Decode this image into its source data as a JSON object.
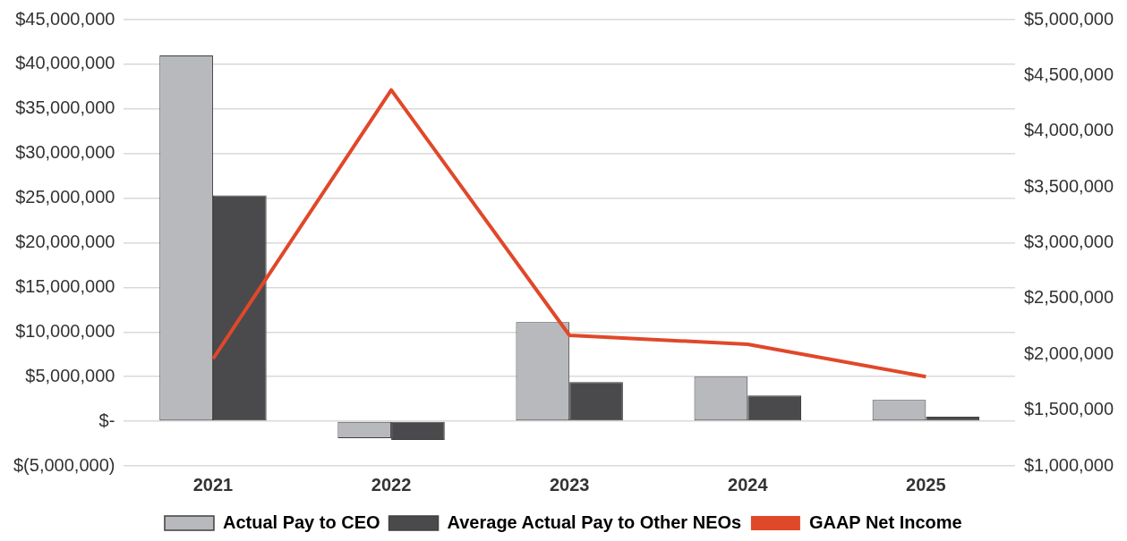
{
  "chart_data": {
    "type": "bar",
    "categories": [
      "2021",
      "2022",
      "2023",
      "2024",
      "2025"
    ],
    "series": [
      {
        "name": "Actual Pay to CEO",
        "color": "#b8b9bd",
        "values": [
          41000000,
          -1900000,
          11100000,
          5000000,
          2400000
        ]
      },
      {
        "name": "Average Actual Pay to Other NEOs",
        "color": "#4a4a4c",
        "values": [
          25300000,
          -2100000,
          4400000,
          2900000,
          500000
        ]
      },
      {
        "name": "GAAP Net Income",
        "type": "line",
        "axis": "y2",
        "color": "#e0482a",
        "marker": "none",
        "values": [
          1960000,
          4370000,
          2170000,
          2090000,
          1800000
        ]
      }
    ],
    "ylim": [
      -5000000,
      45000000
    ],
    "yticks": [
      {
        "value": -5000000,
        "label": "$(5,000,000)"
      },
      {
        "value": 0,
        "label": "$-"
      },
      {
        "value": 5000000,
        "label": "$5,000,000"
      },
      {
        "value": 10000000,
        "label": "$10,000,000"
      },
      {
        "value": 15000000,
        "label": "$15,000,000"
      },
      {
        "value": 20000000,
        "label": "$20,000,000"
      },
      {
        "value": 25000000,
        "label": "$25,000,000"
      },
      {
        "value": 30000000,
        "label": "$30,000,000"
      },
      {
        "value": 35000000,
        "label": "$35,000,000"
      },
      {
        "value": 40000000,
        "label": "$40,000,000"
      },
      {
        "value": 45000000,
        "label": "$45,000,000"
      }
    ],
    "y2lim": [
      1000000,
      5000000
    ],
    "y2ticks": [
      {
        "value": 1000000,
        "label": "$1,000,000"
      },
      {
        "value": 1500000,
        "label": "$1,500,000"
      },
      {
        "value": 2000000,
        "label": "$2,000,000"
      },
      {
        "value": 2500000,
        "label": "$2,500,000"
      },
      {
        "value": 3000000,
        "label": "$3,000,000"
      },
      {
        "value": 3500000,
        "label": "$3,500,000"
      },
      {
        "value": 4000000,
        "label": "$4,000,000"
      },
      {
        "value": 4500000,
        "label": "$4,500,000"
      },
      {
        "value": 5000000,
        "label": "$5,000,000"
      }
    ],
    "grid": "y",
    "legend": "bottom"
  }
}
